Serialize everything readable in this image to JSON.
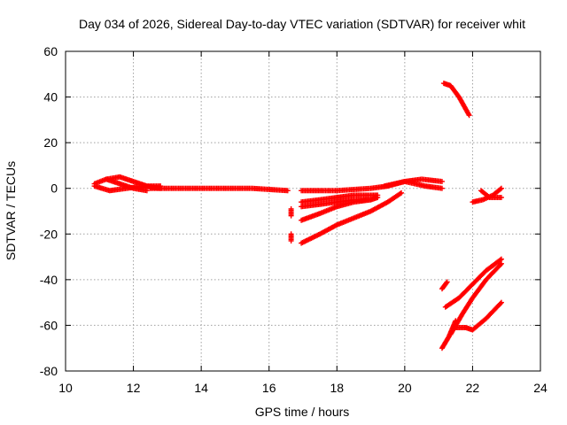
{
  "chart_data": {
    "type": "scatter",
    "title": "Day 034 of 2026, Sidereal Day-to-day VTEC variation (SDTVAR) for receiver whit",
    "xlabel": "GPS time / hours",
    "ylabel": "SDTVAR / TECUs",
    "xlim": [
      10,
      24
    ],
    "ylim": [
      -80,
      60
    ],
    "xticks": [
      10,
      12,
      14,
      16,
      18,
      20,
      22,
      24
    ],
    "yticks": [
      -80,
      -60,
      -40,
      -20,
      0,
      20,
      40,
      60
    ],
    "grid": true,
    "legend": "none",
    "marker": "plus",
    "color": "#ff0000",
    "series": [
      {
        "x": [
          10.85,
          11.2,
          11.6,
          12.0,
          12.4,
          12.8
        ],
        "y": [
          2,
          4,
          5,
          3,
          1,
          1
        ]
      },
      {
        "x": [
          10.85,
          11.3,
          11.8,
          12.3,
          12.8
        ],
        "y": [
          1,
          -1,
          0,
          1,
          0
        ]
      },
      {
        "x": [
          11.2,
          11.6,
          12.0,
          12.4
        ],
        "y": [
          4,
          2,
          0,
          -1
        ]
      },
      {
        "x": [
          12.5,
          13.5,
          14.5,
          15.5,
          16.55
        ],
        "y": [
          0,
          0,
          0,
          0,
          -1
        ]
      },
      {
        "x": [
          16.95,
          17.5,
          18.0,
          18.5,
          19.0,
          19.5,
          20.0,
          20.5,
          21.1
        ],
        "y": [
          -1,
          -1,
          -1,
          -0.5,
          0,
          1,
          3,
          4,
          3
        ]
      },
      {
        "x": [
          19.4,
          20.0,
          20.6,
          21.1
        ],
        "y": [
          1,
          3,
          1,
          0
        ]
      },
      {
        "x": [
          16.95,
          17.5,
          18.0,
          18.5,
          19.0,
          19.2
        ],
        "y": [
          -6,
          -5,
          -4,
          -3,
          -3,
          -3
        ]
      },
      {
        "x": [
          16.95,
          17.5,
          18.0,
          18.5,
          19.0,
          19.2
        ],
        "y": [
          -8,
          -7,
          -6,
          -5,
          -5,
          -4
        ]
      },
      {
        "x": [
          16.95,
          17.5,
          18.0,
          18.5,
          19.0
        ],
        "y": [
          -14,
          -11,
          -8,
          -6,
          -5
        ]
      },
      {
        "x": [
          16.95,
          17.5,
          18.0,
          18.5,
          19.0,
          19.5,
          19.9
        ],
        "y": [
          -24,
          -20,
          -16,
          -13,
          -10,
          -6,
          -2
        ]
      },
      {
        "x": [
          16.65,
          16.65
        ],
        "y": [
          -9,
          -12
        ]
      },
      {
        "x": [
          16.65,
          16.65
        ],
        "y": [
          -20,
          -23
        ]
      },
      {
        "x": [
          21.15,
          21.35,
          21.6,
          21.9
        ],
        "y": [
          46,
          45,
          40,
          32
        ]
      },
      {
        "x": [
          22.0,
          22.3,
          22.6,
          22.85
        ],
        "y": [
          -6,
          -5,
          -3,
          0
        ]
      },
      {
        "x": [
          22.25,
          22.5,
          22.85
        ],
        "y": [
          -1,
          -4,
          -4
        ]
      },
      {
        "x": [
          21.1,
          21.25
        ],
        "y": [
          -44,
          -41
        ]
      },
      {
        "x": [
          21.2,
          21.6,
          22.0,
          22.4,
          22.85
        ],
        "y": [
          -52,
          -48,
          -42,
          -36,
          -31
        ]
      },
      {
        "x": [
          21.35,
          21.7,
          22.0,
          22.4,
          22.85
        ],
        "y": [
          -64,
          -55,
          -48,
          -40,
          -33
        ]
      },
      {
        "x": [
          21.1,
          21.3,
          21.5
        ],
        "y": [
          -70,
          -65,
          -58
        ]
      },
      {
        "x": [
          21.5,
          21.8,
          22.0,
          22.4,
          22.85
        ],
        "y": [
          -61,
          -61,
          -62,
          -57,
          -50
        ]
      }
    ]
  }
}
